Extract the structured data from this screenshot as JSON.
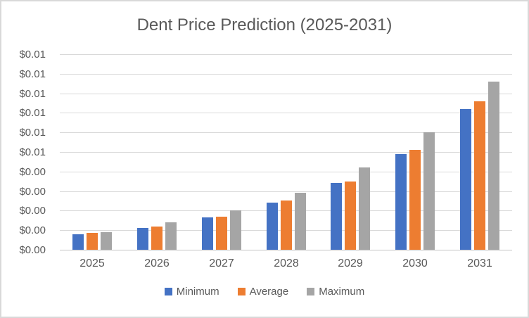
{
  "chart_data": {
    "type": "bar",
    "title": "Dent Price Prediction (2025-2031)",
    "categories": [
      "2025",
      "2026",
      "2027",
      "2028",
      "2029",
      "2030",
      "2031"
    ],
    "series": [
      {
        "name": "Minimum",
        "color": "#4472C4",
        "values": [
          0.0008,
          0.0011,
          0.00165,
          0.0024,
          0.0034,
          0.0049,
          0.0072
        ]
      },
      {
        "name": "Average",
        "color": "#ED7D31",
        "values": [
          0.00085,
          0.0012,
          0.0017,
          0.0025,
          0.0035,
          0.0051,
          0.0076
        ]
      },
      {
        "name": "Maximum",
        "color": "#A5A5A5",
        "values": [
          0.0009,
          0.0014,
          0.002,
          0.0029,
          0.0042,
          0.006,
          0.0086
        ]
      }
    ],
    "xlabel": "",
    "ylabel": "",
    "ylim": [
      0,
      0.01
    ],
    "y_tick_step": 0.001,
    "y_tick_labels_bottom_to_top": [
      "$0.00",
      "$0.00",
      "$0.00",
      "$0.00",
      "$0.00",
      "$0.01",
      "$0.01",
      "$0.01",
      "$0.01",
      "$0.01",
      "$0.01"
    ],
    "grid": true,
    "legend_position": "bottom",
    "colors": {
      "text": "#595959",
      "gridline": "#D9D9D9",
      "axis_line": "#C6C6C6",
      "frame_border": "#D9D9D9",
      "background": "#FFFFFF"
    }
  }
}
